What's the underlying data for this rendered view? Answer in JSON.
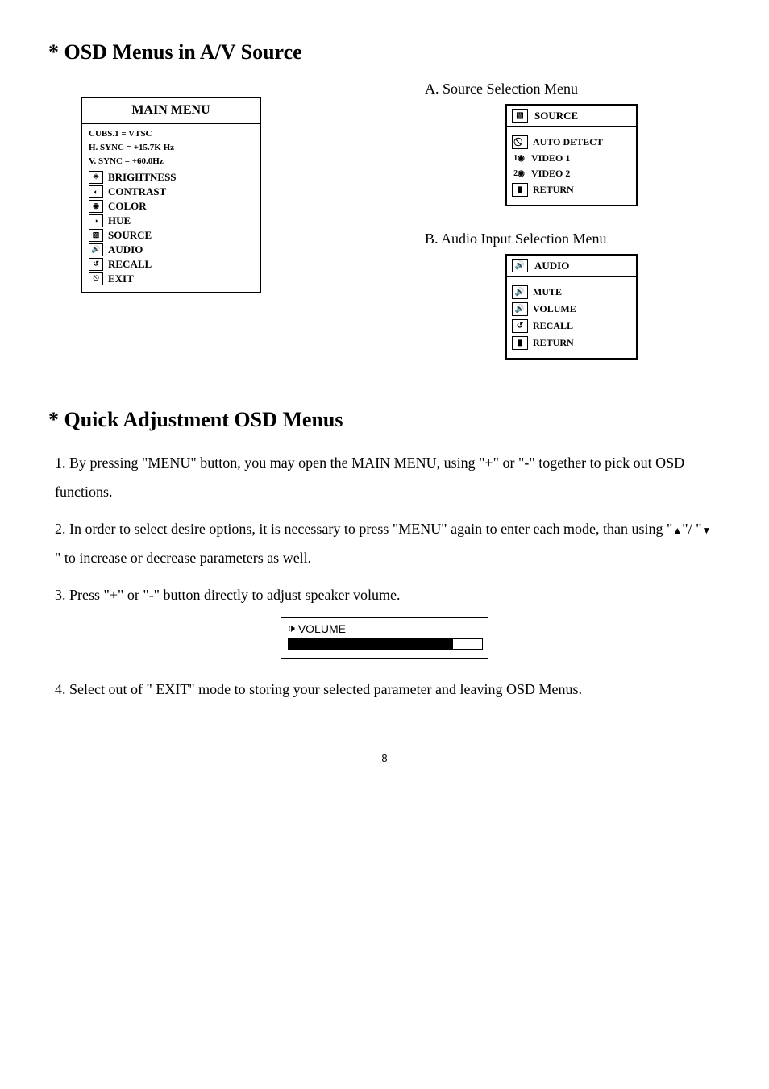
{
  "heading1": "* OSD Menus in A/V Source",
  "mainMenu": {
    "title": "MAIN MENU",
    "info1": "CUBS.1  =  VTSC",
    "info2": "H. SYNC =  +15.7K Hz",
    "info3": "V. SYNC =   +60.0Hz",
    "items": [
      {
        "label": "BRIGHTNESS",
        "icon": "☀"
      },
      {
        "label": "CONTRAST",
        "icon": "◐"
      },
      {
        "label": "COLOR",
        "icon": "◉"
      },
      {
        "label": "HUE",
        "icon": "◑"
      },
      {
        "label": "SOURCE",
        "icon": "▨"
      },
      {
        "label": "AUDIO",
        "icon": "🔊"
      },
      {
        "label": "RECALL",
        "icon": "↺"
      },
      {
        "label": "EXIT",
        "icon": "⎋"
      }
    ]
  },
  "sectionA": {
    "label": "A. Source Selection Menu",
    "title": "SOURCE",
    "titleIcon": "▨",
    "items": [
      {
        "label": "AUTO DETECT",
        "icon": "⃠",
        "boxed": true
      },
      {
        "label": "VIDEO 1",
        "icon": "1◉",
        "boxed": false
      },
      {
        "label": "VIDEO 2",
        "icon": "2◉",
        "boxed": false
      },
      {
        "label": "RETURN",
        "icon": "▮",
        "boxed": true
      }
    ]
  },
  "sectionB": {
    "label": "B. Audio Input Selection Menu",
    "title": "AUDIO",
    "titleIcon": "🔊",
    "items": [
      {
        "label": "MUTE",
        "icon": "🔊"
      },
      {
        "label": "VOLUME",
        "icon": "🔊"
      },
      {
        "label": "RECALL",
        "icon": "↺"
      },
      {
        "label": "RETURN",
        "icon": "▮"
      }
    ]
  },
  "heading2": "* Quick Adjustment OSD Menus",
  "instructions": {
    "p1": "1. By pressing \"MENU\" button, you may open the MAIN MENU, using \"+\" or \"-\" together to pick out OSD functions.",
    "p2a": "2. In order to select desire options, it is necessary to press \"MENU\" again to enter each mode, than using \"",
    "p2b": "\"/ \"",
    "p2c": " \" to increase or decrease parameters as well.",
    "p3": "3. Press \"+\" or \"-\" button directly to adjust speaker volume.",
    "p4": "4. Select out of \" EXIT\" mode to storing your selected parameter and leaving  OSD Menus."
  },
  "volume": {
    "label": "VOLUME",
    "fillPercent": 85
  },
  "pageNumber": "8",
  "triangles": {
    "up": "▲",
    "down": "▼"
  },
  "speakerIcon": "🕩"
}
